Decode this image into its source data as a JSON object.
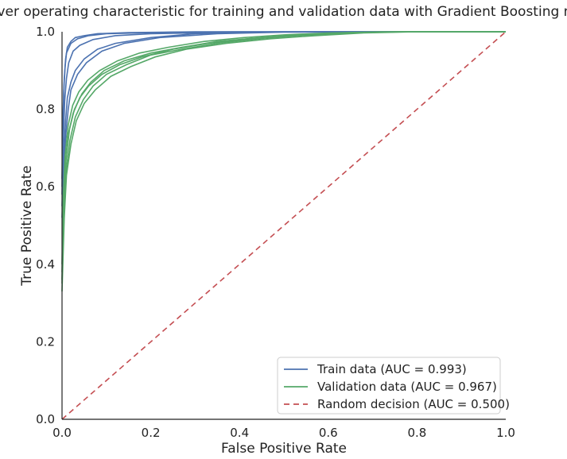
{
  "chart_data": {
    "type": "line",
    "title": "Receiver operating characteristic for training and validation data with Gradient Boosting model",
    "xlabel": "False Positive Rate",
    "ylabel": "True Positive Rate",
    "xlim": [
      0.0,
      1.0
    ],
    "ylim": [
      0.0,
      1.0
    ],
    "xticks": [
      "0.0",
      "0.2",
      "0.4",
      "0.6",
      "0.8",
      "1.0"
    ],
    "yticks": [
      "0.0",
      "0.2",
      "0.4",
      "0.6",
      "0.8",
      "1.0"
    ],
    "grid": false,
    "legend_position": "bottom-right",
    "series": [
      {
        "name": "Train data (AUC = 0.993)",
        "color": "#4c72b0",
        "dash": "solid",
        "curves": [
          [
            [
              0,
              0.62
            ],
            [
              0.002,
              0.78
            ],
            [
              0.005,
              0.88
            ],
            [
              0.008,
              0.93
            ],
            [
              0.012,
              0.96
            ],
            [
              0.02,
              0.975
            ],
            [
              0.03,
              0.985
            ],
            [
              0.05,
              0.99
            ],
            [
              0.08,
              0.995
            ],
            [
              0.15,
              0.998
            ],
            [
              0.3,
              1.0
            ],
            [
              1.0,
              1.0
            ]
          ],
          [
            [
              0,
              0.58
            ],
            [
              0.003,
              0.72
            ],
            [
              0.006,
              0.82
            ],
            [
              0.01,
              0.88
            ],
            [
              0.015,
              0.92
            ],
            [
              0.025,
              0.95
            ],
            [
              0.04,
              0.965
            ],
            [
              0.07,
              0.98
            ],
            [
              0.12,
              0.99
            ],
            [
              0.2,
              0.995
            ],
            [
              0.35,
              0.998
            ],
            [
              0.5,
              1.0
            ],
            [
              1.0,
              1.0
            ]
          ],
          [
            [
              0,
              0.55
            ],
            [
              0.004,
              0.68
            ],
            [
              0.008,
              0.77
            ],
            [
              0.012,
              0.83
            ],
            [
              0.02,
              0.87
            ],
            [
              0.03,
              0.9
            ],
            [
              0.05,
              0.93
            ],
            [
              0.08,
              0.955
            ],
            [
              0.12,
              0.97
            ],
            [
              0.2,
              0.985
            ],
            [
              0.3,
              0.995
            ],
            [
              0.45,
              0.999
            ],
            [
              0.6,
              1.0
            ],
            [
              1.0,
              1.0
            ]
          ],
          [
            [
              0,
              0.52
            ],
            [
              0.004,
              0.65
            ],
            [
              0.009,
              0.74
            ],
            [
              0.014,
              0.8
            ],
            [
              0.02,
              0.85
            ],
            [
              0.035,
              0.89
            ],
            [
              0.055,
              0.92
            ],
            [
              0.09,
              0.95
            ],
            [
              0.14,
              0.97
            ],
            [
              0.22,
              0.985
            ],
            [
              0.35,
              0.995
            ],
            [
              0.5,
              0.999
            ],
            [
              1.0,
              1.0
            ]
          ],
          [
            [
              0,
              0.6
            ],
            [
              0.002,
              0.75
            ],
            [
              0.004,
              0.85
            ],
            [
              0.007,
              0.91
            ],
            [
              0.01,
              0.945
            ],
            [
              0.02,
              0.97
            ],
            [
              0.035,
              0.982
            ],
            [
              0.06,
              0.99
            ],
            [
              0.1,
              0.995
            ],
            [
              0.25,
              0.999
            ],
            [
              0.4,
              1.0
            ],
            [
              1.0,
              1.0
            ]
          ]
        ]
      },
      {
        "name": "Validation data (AUC = 0.967)",
        "color": "#55a868",
        "dash": "solid",
        "curves": [
          [
            [
              0,
              0.35
            ],
            [
              0.003,
              0.55
            ],
            [
              0.008,
              0.66
            ],
            [
              0.015,
              0.74
            ],
            [
              0.025,
              0.79
            ],
            [
              0.04,
              0.83
            ],
            [
              0.06,
              0.86
            ],
            [
              0.09,
              0.89
            ],
            [
              0.13,
              0.915
            ],
            [
              0.18,
              0.935
            ],
            [
              0.25,
              0.955
            ],
            [
              0.33,
              0.97
            ],
            [
              0.42,
              0.982
            ],
            [
              0.52,
              0.99
            ],
            [
              0.62,
              0.996
            ],
            [
              0.75,
              1.0
            ],
            [
              1.0,
              1.0
            ]
          ],
          [
            [
              0,
              0.38
            ],
            [
              0.004,
              0.57
            ],
            [
              0.009,
              0.67
            ],
            [
              0.017,
              0.75
            ],
            [
              0.028,
              0.8
            ],
            [
              0.045,
              0.84
            ],
            [
              0.065,
              0.87
            ],
            [
              0.095,
              0.9
            ],
            [
              0.14,
              0.925
            ],
            [
              0.2,
              0.945
            ],
            [
              0.27,
              0.96
            ],
            [
              0.35,
              0.975
            ],
            [
              0.45,
              0.985
            ],
            [
              0.55,
              0.993
            ],
            [
              0.65,
              0.998
            ],
            [
              0.78,
              1.0
            ],
            [
              1.0,
              1.0
            ]
          ],
          [
            [
              0,
              0.33
            ],
            [
              0.005,
              0.52
            ],
            [
              0.01,
              0.63
            ],
            [
              0.02,
              0.71
            ],
            [
              0.032,
              0.77
            ],
            [
              0.05,
              0.815
            ],
            [
              0.075,
              0.85
            ],
            [
              0.11,
              0.885
            ],
            [
              0.155,
              0.91
            ],
            [
              0.21,
              0.935
            ],
            [
              0.28,
              0.955
            ],
            [
              0.37,
              0.97
            ],
            [
              0.47,
              0.982
            ],
            [
              0.57,
              0.99
            ],
            [
              0.68,
              0.997
            ],
            [
              0.8,
              1.0
            ],
            [
              1.0,
              1.0
            ]
          ],
          [
            [
              0,
              0.4
            ],
            [
              0.003,
              0.58
            ],
            [
              0.007,
              0.68
            ],
            [
              0.014,
              0.76
            ],
            [
              0.024,
              0.81
            ],
            [
              0.038,
              0.845
            ],
            [
              0.058,
              0.875
            ],
            [
              0.085,
              0.9
            ],
            [
              0.125,
              0.925
            ],
            [
              0.175,
              0.945
            ],
            [
              0.24,
              0.96
            ],
            [
              0.32,
              0.975
            ],
            [
              0.41,
              0.985
            ],
            [
              0.5,
              0.992
            ],
            [
              0.6,
              0.997
            ],
            [
              0.72,
              1.0
            ],
            [
              1.0,
              1.0
            ]
          ],
          [
            [
              0,
              0.36
            ],
            [
              0.004,
              0.54
            ],
            [
              0.01,
              0.65
            ],
            [
              0.018,
              0.72
            ],
            [
              0.03,
              0.78
            ],
            [
              0.048,
              0.825
            ],
            [
              0.07,
              0.86
            ],
            [
              0.1,
              0.89
            ],
            [
              0.145,
              0.915
            ],
            [
              0.2,
              0.94
            ],
            [
              0.27,
              0.955
            ],
            [
              0.36,
              0.972
            ],
            [
              0.46,
              0.984
            ],
            [
              0.56,
              0.992
            ],
            [
              0.66,
              0.997
            ],
            [
              0.77,
              1.0
            ],
            [
              1.0,
              1.0
            ]
          ]
        ]
      },
      {
        "name": "Random decision (AUC = 0.500)",
        "color": "#c44e52",
        "dash": "dashed",
        "curves": [
          [
            [
              0,
              0
            ],
            [
              1,
              1
            ]
          ]
        ]
      }
    ]
  }
}
